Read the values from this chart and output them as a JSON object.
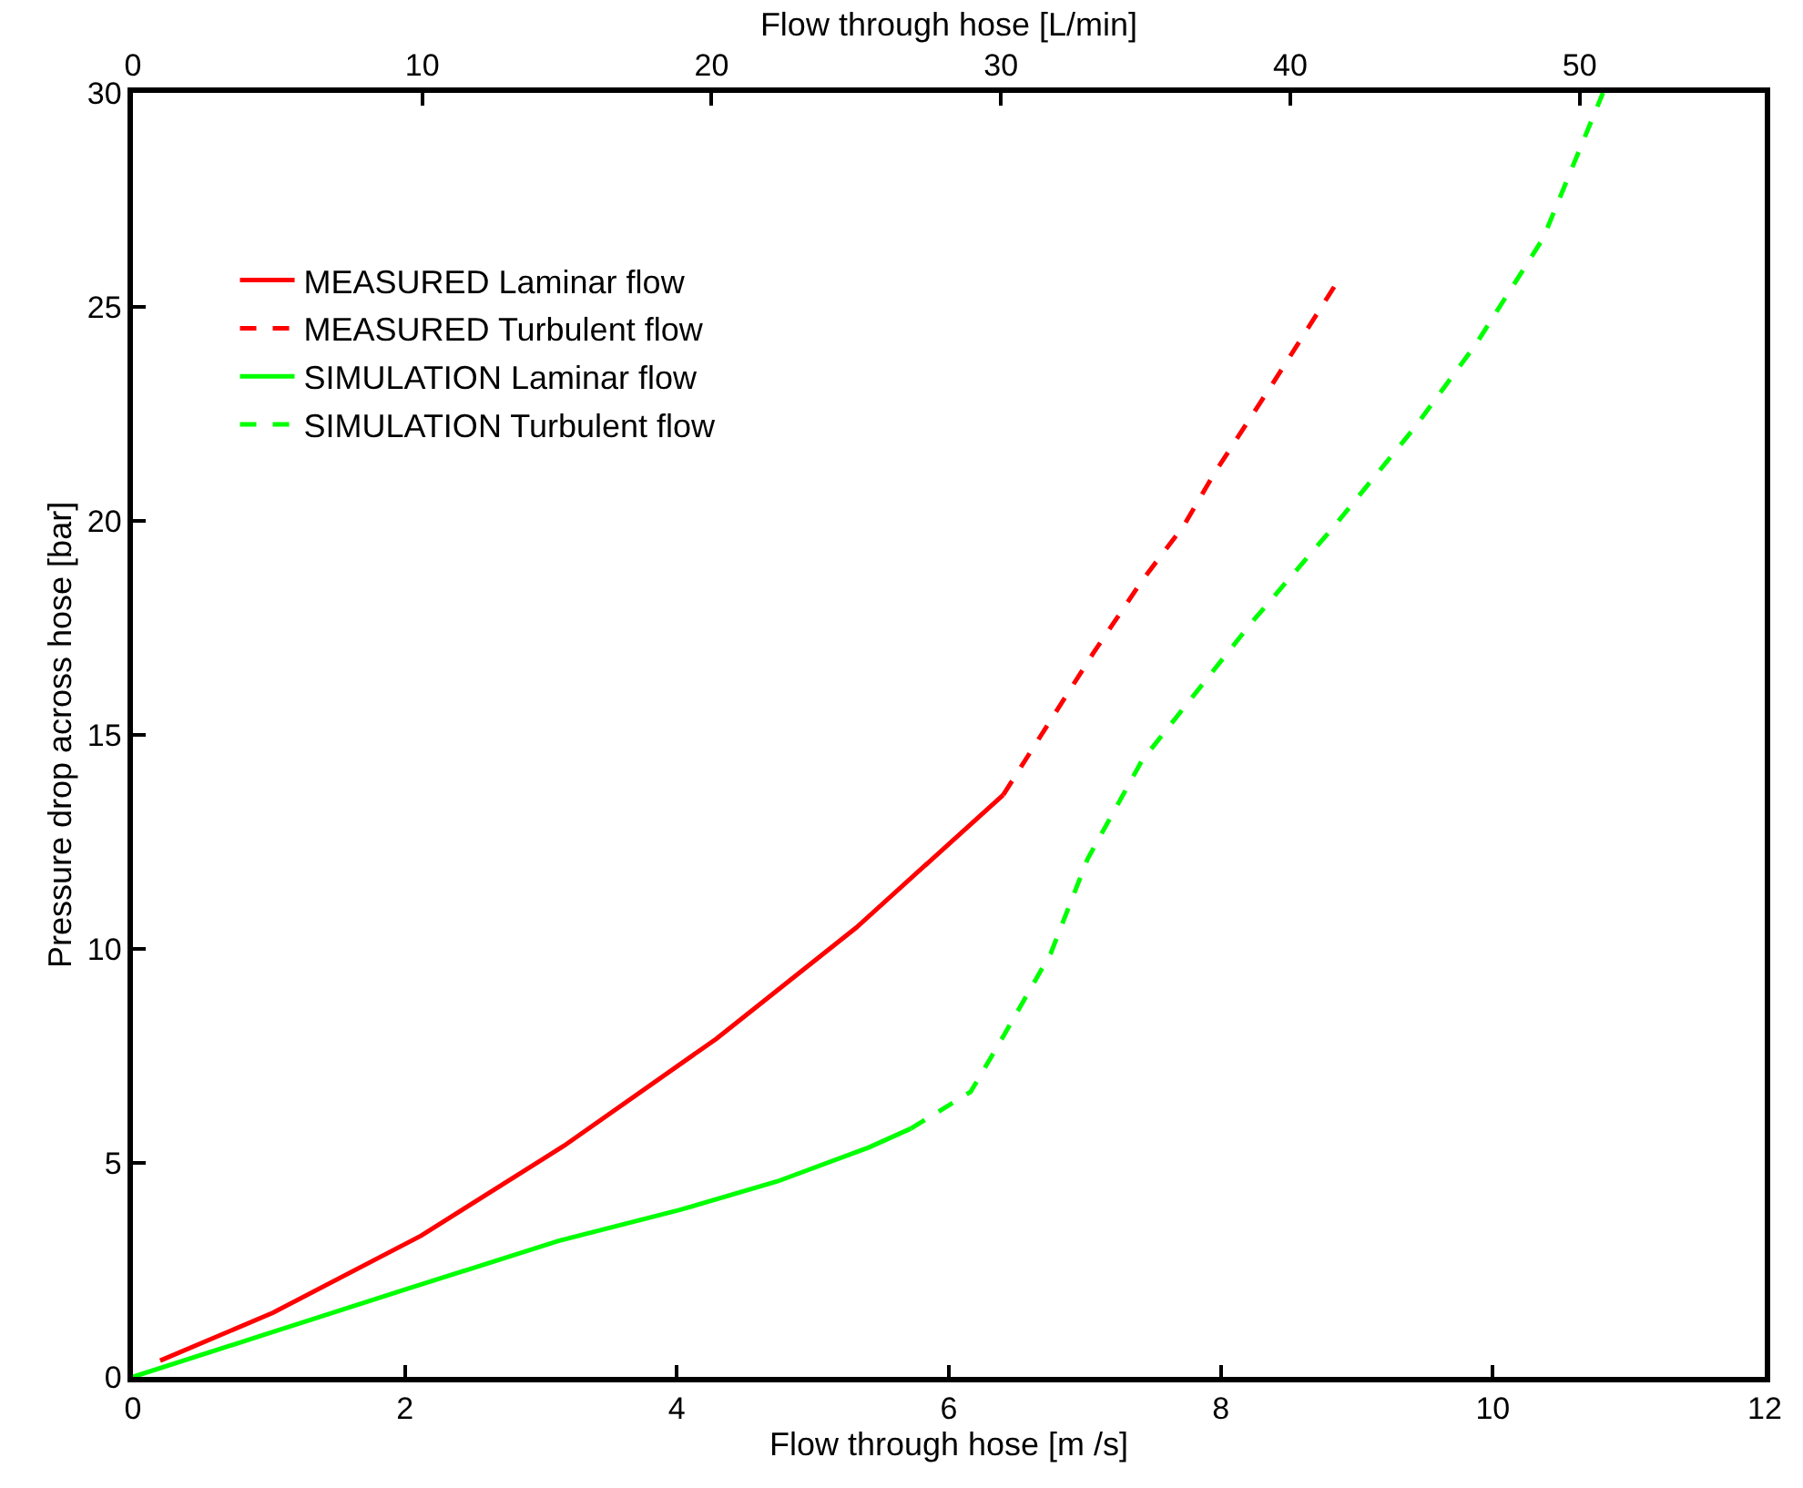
{
  "chart_data": {
    "type": "line",
    "xlabel": "Flow through hose [m /s]",
    "ylabel": "Pressure drop across hose [bar]",
    "x2label": "Flow through hose [L/min]",
    "xlim": [
      0,
      12
    ],
    "xticks": [
      0,
      2,
      4,
      6,
      8,
      10,
      12
    ],
    "ylim": [
      0,
      30
    ],
    "yticks": [
      0,
      5,
      10,
      15,
      20,
      25,
      30
    ],
    "x2lim": [
      0,
      56.4
    ],
    "x2ticks": [
      0,
      10,
      20,
      30,
      40,
      50
    ],
    "legend": "top left",
    "marker": "none",
    "series": [
      {
        "name": "MEASURED Laminar flow",
        "color": "#ff0000",
        "line_style": "solid",
        "x": [
          0.2,
          1.03,
          2.12,
          3.17,
          4.29,
          5.32,
          6.4
        ],
        "values": [
          0.38,
          1.5,
          3.3,
          5.4,
          7.9,
          10.5,
          13.6
        ]
      },
      {
        "name": "MEASURED Turbulent flow",
        "color": "#ff0000",
        "line_style": "dashed",
        "x": [
          6.4,
          7.06,
          7.42,
          7.73,
          7.95,
          8.4,
          8.84
        ],
        "values": [
          13.6,
          16.9,
          18.6,
          19.9,
          21.1,
          23.3,
          25.5
        ]
      },
      {
        "name": "SIMULATION Laminar flow",
        "color": "#00ff00",
        "line_style": "solid",
        "x": [
          0,
          0.94,
          2.01,
          3.13,
          4.02,
          4.74,
          5.41,
          5.72
        ],
        "values": [
          0,
          0.96,
          2.05,
          3.18,
          3.9,
          4.57,
          5.36,
          5.8
        ]
      },
      {
        "name": "SIMULATION Turbulent flow",
        "color": "#00ff00",
        "line_style": "dashed",
        "x": [
          5.72,
          6.16,
          6.39,
          6.75,
          7.02,
          7.42,
          8.22,
          8.84,
          9.43,
          9.87,
          10.37,
          10.81
        ],
        "values": [
          5.8,
          6.66,
          7.9,
          9.9,
          12.1,
          14.4,
          17.6,
          19.9,
          22.2,
          24.1,
          26.6,
          30
        ]
      }
    ]
  }
}
